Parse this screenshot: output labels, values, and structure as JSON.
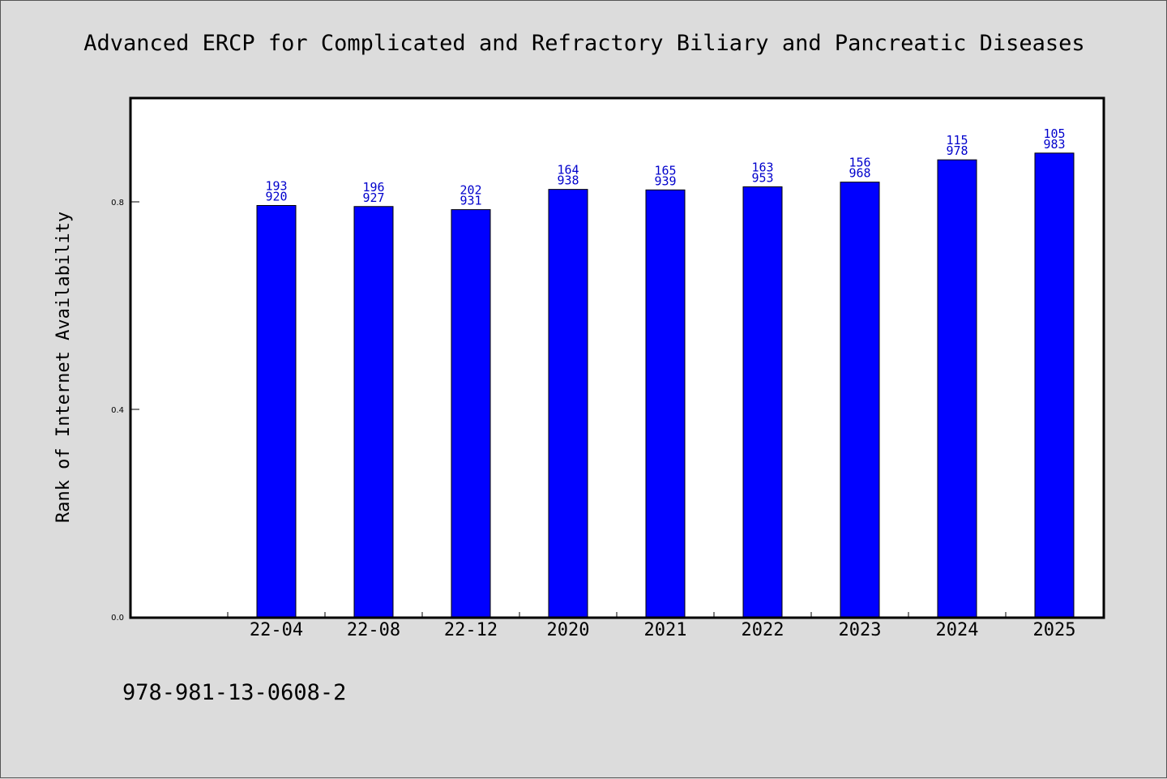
{
  "chart_data": {
    "type": "bar",
    "title": "Advanced ERCP for Complicated and Refractory Biliary and Pancreatic Diseases",
    "xlabel": "",
    "ylabel": "Rank of Internet Availability",
    "categories": [
      "22-04",
      "22-08",
      "22-12",
      "2020",
      "2021",
      "2022",
      "2023",
      "2024",
      "2025"
    ],
    "values": [
      0.793,
      0.791,
      0.785,
      0.824,
      0.823,
      0.829,
      0.838,
      0.881,
      0.894
    ],
    "labels_top": [
      "193",
      "196",
      "202",
      "164",
      "165",
      "163",
      "156",
      "115",
      "105"
    ],
    "labels_bottom": [
      "920",
      "927",
      "931",
      "938",
      "939",
      "953",
      "968",
      "978",
      "983"
    ],
    "yticks": [
      "0.0",
      "0.4",
      "0.8"
    ],
    "ytick_values": [
      0.0,
      0.4,
      0.8
    ],
    "ylim": [
      0,
      1.0
    ],
    "grid": false,
    "legend": "none",
    "colors": {
      "bar": "#0000ff",
      "data_label": "#0000cc",
      "plot_bg": "#ffffff",
      "page_bg": "#dcdcdc"
    }
  },
  "footer": {
    "isbn": "978-981-13-0608-2"
  }
}
